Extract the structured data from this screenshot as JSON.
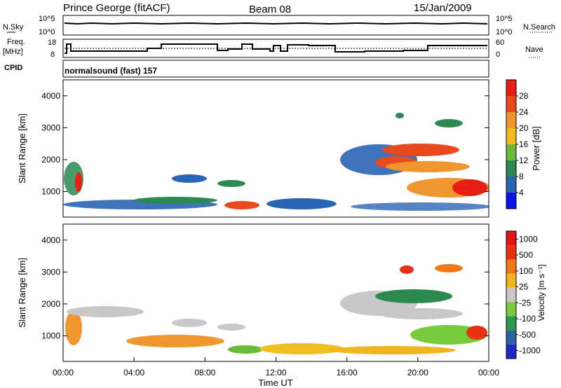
{
  "header": {
    "station": "Prince George (fitACF)",
    "beam": "Beam 08",
    "date": "15/Jan/2009"
  },
  "top_panels": {
    "nsky_label": "N.Sky",
    "nsky_ticks": [
      "10^5",
      "10^0"
    ],
    "nsearch_label": "N.Search",
    "nsearch_ticks": [
      "10^5",
      "10^0"
    ],
    "freq_label_1": "Freq.",
    "freq_label_2": "[MHz]",
    "freq_ticks": [
      "18",
      "8"
    ],
    "nave_label": "Nave",
    "nave_ticks": [
      "60",
      "0"
    ],
    "cpid_label": "CPID",
    "cpid_text": "normalsound (fast) 157"
  },
  "chart_data": [
    {
      "type": "heatmap",
      "name": "Power",
      "ylabel": "Slant Range [km]",
      "yticks": [
        "1000",
        "2000",
        "3000",
        "4000"
      ],
      "ylim": [
        200,
        4500
      ],
      "colorbar_label": "Power [dB]",
      "colorbar_ticks": [
        "4",
        "8",
        "12",
        "16",
        "20",
        "24",
        "28"
      ],
      "colorbar_colors": [
        "#0a14e6",
        "#2a64b4",
        "#2a8a50",
        "#6aba3c",
        "#f0be1e",
        "#f09630",
        "#e84a1e",
        "#e61e14"
      ]
    },
    {
      "type": "heatmap",
      "name": "Velocity",
      "ylabel": "Slant Range [km]",
      "yticks": [
        "1000",
        "2000",
        "3000",
        "4000"
      ],
      "ylim": [
        200,
        4500
      ],
      "colorbar_label": "Velocity [m s⁻¹]",
      "colorbar_ticks": [
        "1000",
        "500",
        "100",
        "25",
        "-25",
        "-100",
        "-500",
        "-1000"
      ],
      "colorbar_colors": [
        "#1e28c8",
        "#2a64a0",
        "#2a9a50",
        "#78cc3c",
        "#c8c8c8",
        "#f0b41e",
        "#f07818",
        "#e83214",
        "#e01414"
      ]
    }
  ],
  "x_axis": {
    "ticks": [
      "00:00",
      "04:00",
      "08:00",
      "12:00",
      "16:00",
      "20:00",
      "00:00"
    ],
    "label": "Time UT"
  }
}
